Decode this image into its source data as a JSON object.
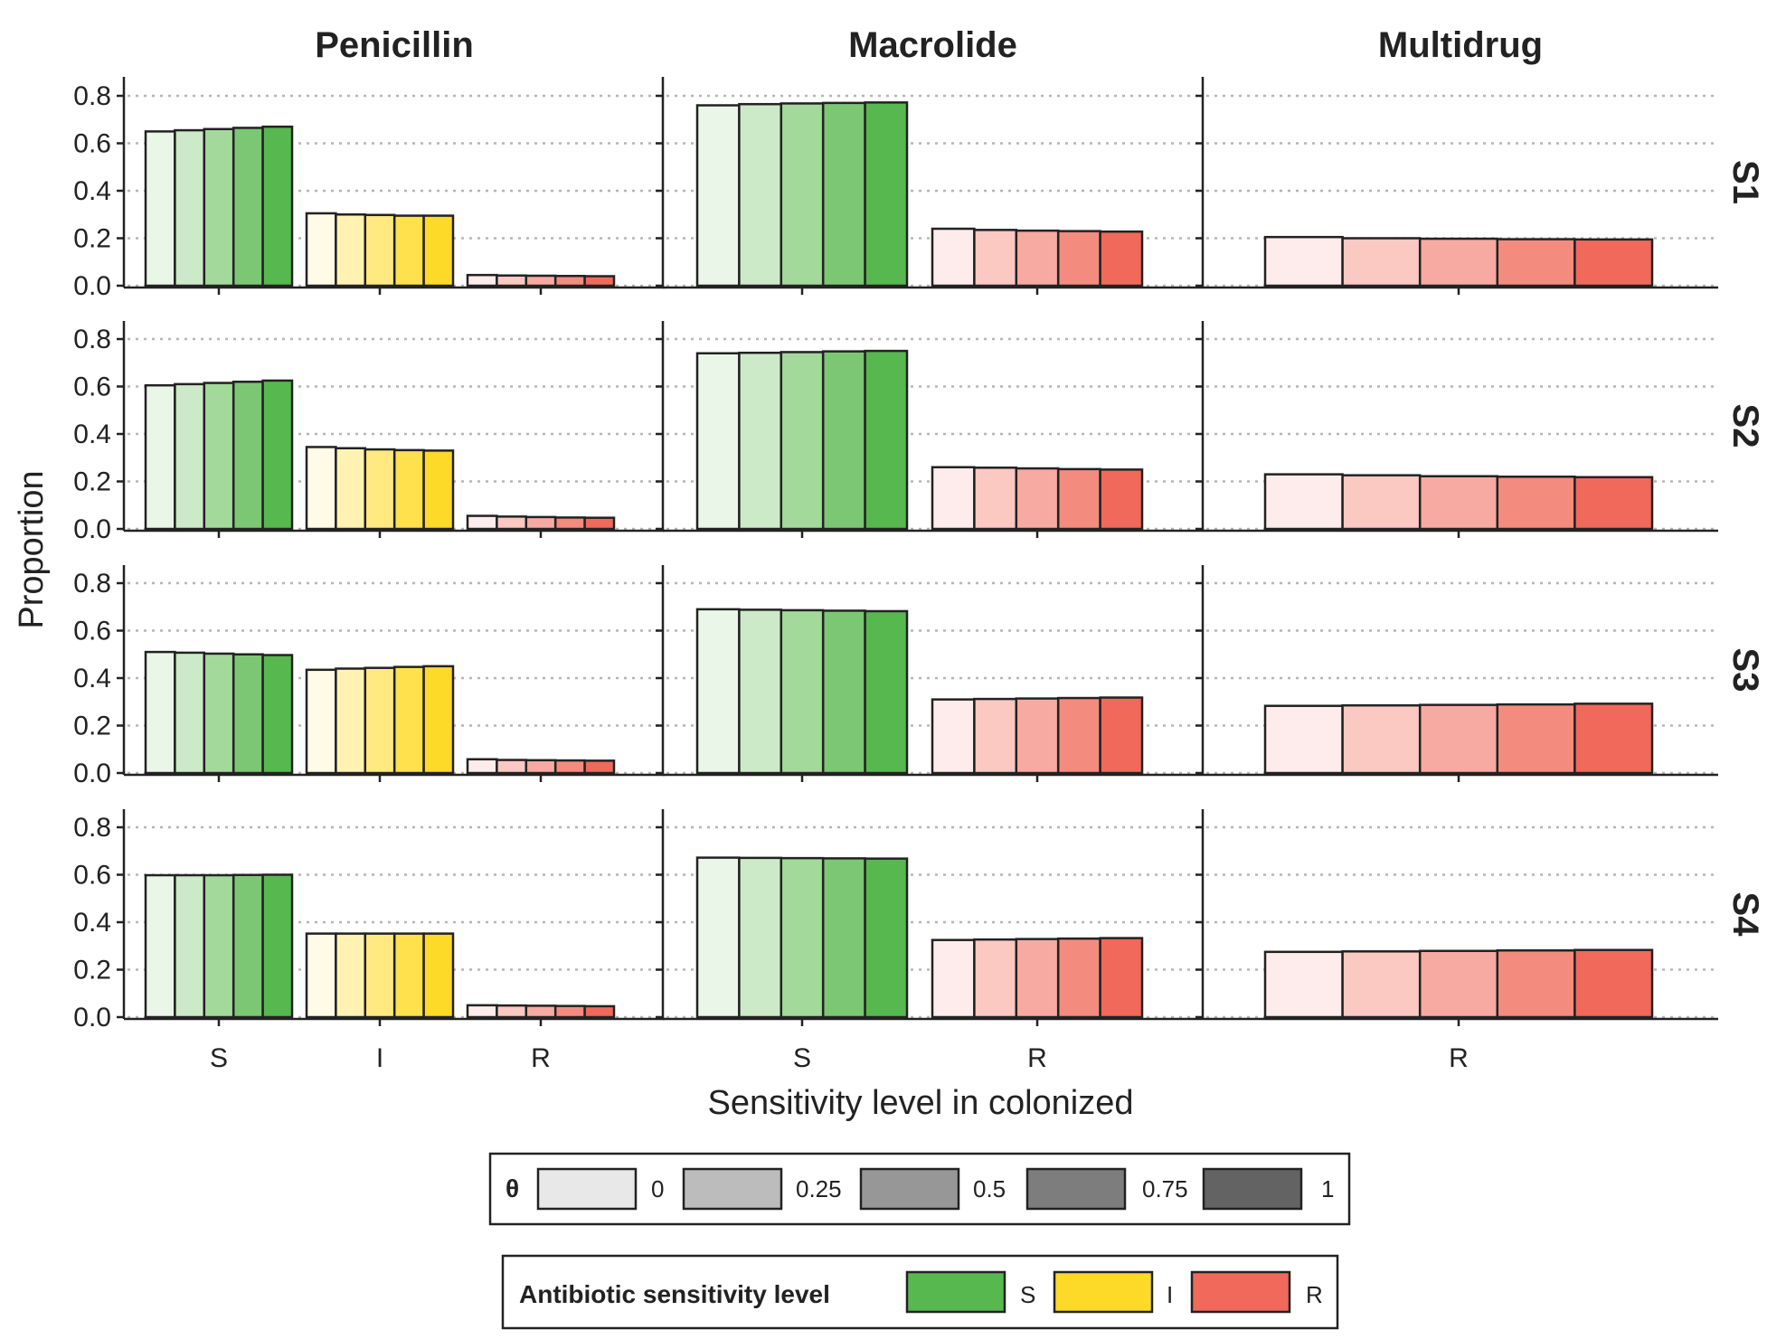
{
  "chart_data": {
    "type": "bar",
    "layout": "facet_grid",
    "ylabel": "Proportion",
    "xlabel": "Sensitivity level in colonized",
    "ylim": [
      0,
      0.85
    ],
    "yticks": [
      "0.0",
      "0.2",
      "0.4",
      "0.6",
      "0.8"
    ],
    "grid": "horizontal dotted",
    "columns": [
      {
        "name": "Penicillin",
        "categories": [
          "S",
          "I",
          "R"
        ]
      },
      {
        "name": "Macrolide",
        "categories": [
          "S",
          "R"
        ]
      },
      {
        "name": "Multidrug",
        "categories": [
          "R"
        ]
      }
    ],
    "rows": [
      "S1",
      "S2",
      "S3",
      "S4"
    ],
    "theta_levels": [
      "0",
      "0.25",
      "0.5",
      "0.75",
      "1"
    ],
    "values": {
      "S1": {
        "Penicillin": {
          "S": [
            0.65,
            0.655,
            0.66,
            0.665,
            0.67
          ],
          "I": [
            0.305,
            0.3,
            0.298,
            0.295,
            0.295
          ],
          "R": [
            0.045,
            0.043,
            0.042,
            0.041,
            0.04
          ]
        },
        "Macrolide": {
          "S": [
            0.76,
            0.765,
            0.768,
            0.77,
            0.772
          ],
          "R": [
            0.24,
            0.235,
            0.232,
            0.23,
            0.228
          ]
        },
        "Multidrug": {
          "R": [
            0.205,
            0.2,
            0.198,
            0.196,
            0.195
          ]
        }
      },
      "S2": {
        "Penicillin": {
          "S": [
            0.605,
            0.61,
            0.615,
            0.62,
            0.625
          ],
          "I": [
            0.345,
            0.34,
            0.335,
            0.332,
            0.33
          ],
          "R": [
            0.055,
            0.052,
            0.05,
            0.048,
            0.047
          ]
        },
        "Macrolide": {
          "S": [
            0.74,
            0.742,
            0.745,
            0.748,
            0.75
          ],
          "R": [
            0.26,
            0.258,
            0.255,
            0.252,
            0.25
          ]
        },
        "Multidrug": {
          "R": [
            0.23,
            0.226,
            0.222,
            0.22,
            0.218
          ]
        }
      },
      "S3": {
        "Penicillin": {
          "S": [
            0.51,
            0.507,
            0.503,
            0.5,
            0.497
          ],
          "I": [
            0.435,
            0.44,
            0.443,
            0.447,
            0.45
          ],
          "R": [
            0.058,
            0.055,
            0.054,
            0.053,
            0.052
          ]
        },
        "Macrolide": {
          "S": [
            0.69,
            0.688,
            0.686,
            0.684,
            0.682
          ],
          "R": [
            0.31,
            0.312,
            0.314,
            0.316,
            0.318
          ]
        },
        "Multidrug": {
          "R": [
            0.283,
            0.285,
            0.287,
            0.289,
            0.292
          ]
        }
      },
      "S4": {
        "Penicillin": {
          "S": [
            0.598,
            0.598,
            0.598,
            0.599,
            0.6
          ],
          "I": [
            0.352,
            0.352,
            0.352,
            0.352,
            0.352
          ],
          "R": [
            0.05,
            0.049,
            0.048,
            0.047,
            0.046
          ]
        },
        "Macrolide": {
          "S": [
            0.672,
            0.671,
            0.67,
            0.669,
            0.668
          ],
          "R": [
            0.325,
            0.327,
            0.329,
            0.331,
            0.333
          ]
        },
        "Multidrug": {
          "R": [
            0.275,
            0.277,
            0.279,
            0.281,
            0.283
          ]
        }
      }
    },
    "category_colors": {
      "S": [
        "#eaf6e8",
        "#cdeac8",
        "#a3d99b",
        "#7cc774",
        "#57b84f"
      ],
      "I": [
        "#fffbe6",
        "#fff2b3",
        "#ffe980",
        "#ffe04d",
        "#fdd928"
      ],
      "R": [
        "#fdeceb",
        "#fbc8c2",
        "#f7aaa1",
        "#f48b7f",
        "#f0695a"
      ]
    },
    "legend_theta": {
      "title": "θ",
      "labels": [
        "0",
        "0.25",
        "0.5",
        "0.75",
        "1"
      ],
      "colors": [
        "#e8e8e8",
        "#bcbcbc",
        "#979797",
        "#7d7d7d",
        "#636363"
      ]
    },
    "legend_sensitivity": {
      "title": "Antibiotic sensitivity level",
      "labels": [
        "S",
        "I",
        "R"
      ],
      "colors": [
        "#57b84f",
        "#fdd928",
        "#f0695a"
      ]
    },
    "legend_position": "bottom"
  }
}
